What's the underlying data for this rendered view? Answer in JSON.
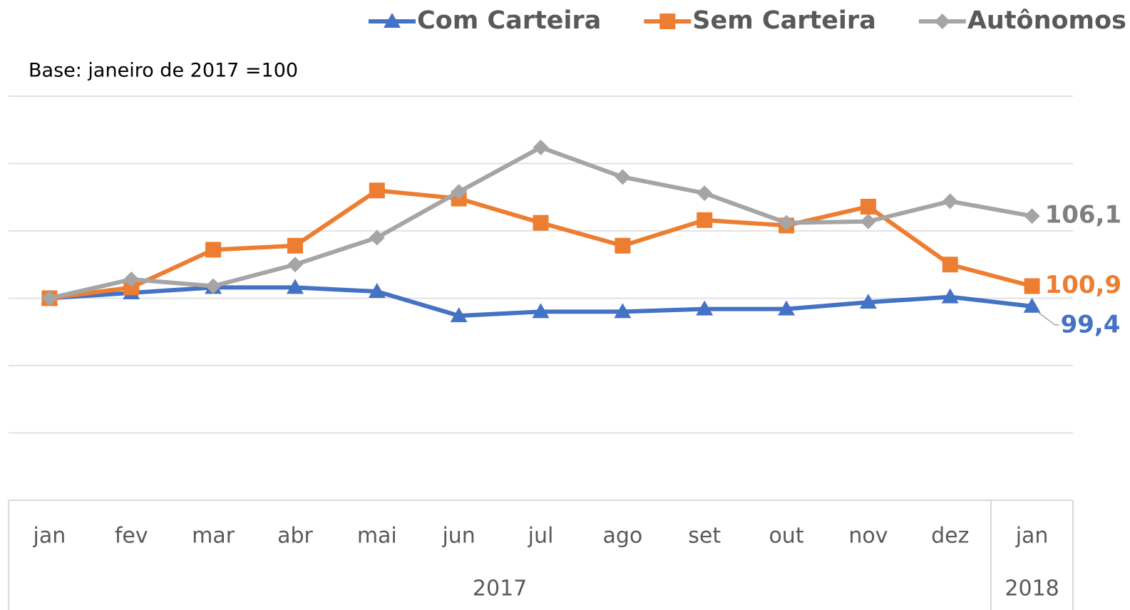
{
  "chart_data": {
    "type": "line",
    "subtitle": "Base: janeiro de 2017 =100",
    "categories": [
      "jan",
      "fev",
      "mar",
      "abr",
      "mai",
      "jun",
      "jul",
      "ago",
      "set",
      "out",
      "nov",
      "dez",
      "jan"
    ],
    "category_years": [
      "2017",
      null,
      null,
      null,
      null,
      null,
      null,
      null,
      null,
      null,
      null,
      null,
      "2018"
    ],
    "ylim": [
      85,
      115
    ],
    "yticks": [
      85,
      90,
      95,
      100,
      105,
      110,
      115
    ],
    "grid": true,
    "legend": "top",
    "series": [
      {
        "name": "Com Carteira",
        "color": "#4472c4",
        "marker": "triangle",
        "values": [
          100,
          100.4,
          100.8,
          100.8,
          100.5,
          98.7,
          99.0,
          99.0,
          99.2,
          99.2,
          99.7,
          100.1,
          99.4
        ],
        "value_labels": [
          null,
          null,
          null,
          null,
          null,
          null,
          null,
          null,
          null,
          null,
          null,
          null,
          "99,4"
        ]
      },
      {
        "name": "Sem Carteira",
        "color": "#ed7d31",
        "marker": "square",
        "values": [
          100,
          100.8,
          103.6,
          103.9,
          108.0,
          107.4,
          105.6,
          103.9,
          105.8,
          105.4,
          106.8,
          102.5,
          100.9
        ],
        "value_labels": [
          null,
          null,
          null,
          null,
          null,
          null,
          null,
          null,
          null,
          null,
          null,
          null,
          "100,9"
        ]
      },
      {
        "name": "Autônomos",
        "color": "#a5a5a5",
        "label_color": "#7f7f7f",
        "marker": "diamond",
        "values": [
          100,
          101.4,
          100.9,
          102.5,
          104.5,
          107.9,
          111.2,
          109.0,
          107.8,
          105.6,
          105.7,
          107.2,
          106.1
        ],
        "value_labels": [
          null,
          null,
          null,
          null,
          null,
          null,
          null,
          null,
          null,
          null,
          null,
          null,
          "106,1"
        ]
      }
    ]
  }
}
